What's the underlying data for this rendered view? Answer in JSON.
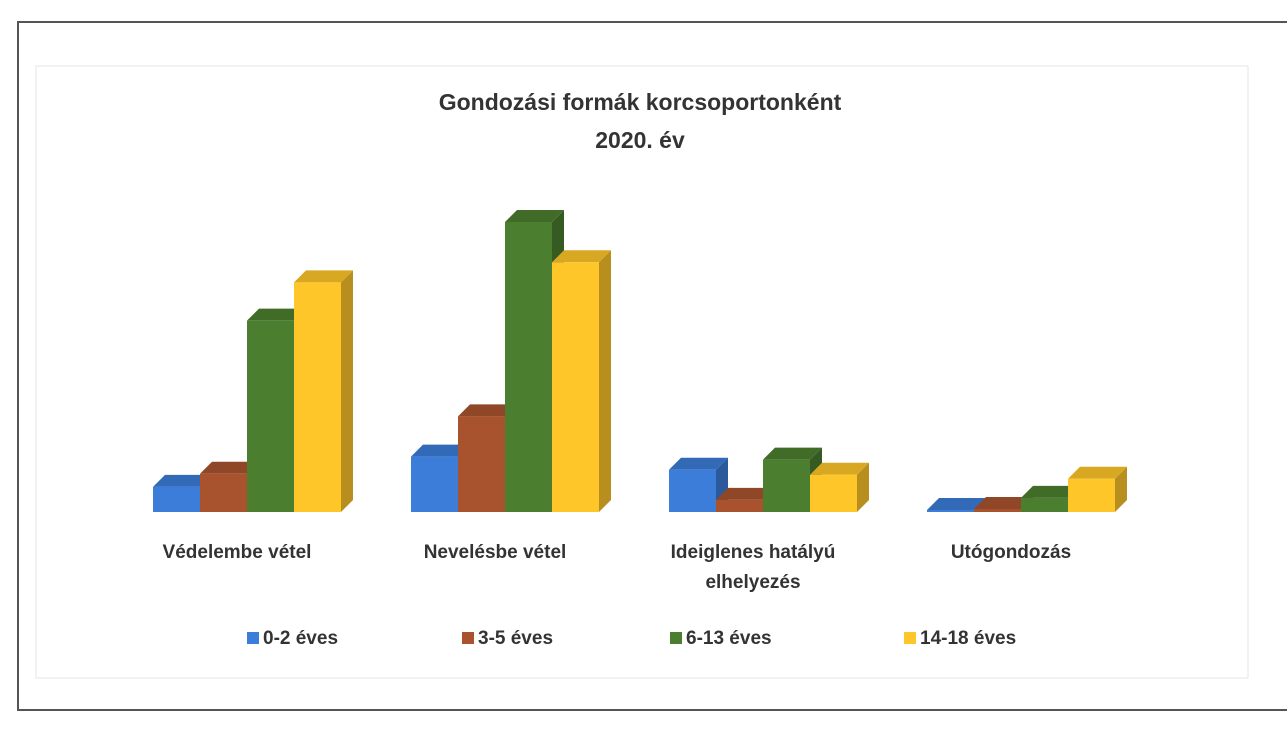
{
  "chart_data": {
    "type": "bar3d",
    "title": "Gondozási formák korcsoportonként",
    "subtitle": "2020. év",
    "categories": [
      "Védelembe vétel",
      "Nevelésbe vétel",
      "Ideiglenes hatályú elhelyezés",
      "Utógondozás"
    ],
    "series": [
      {
        "name": "0-2 éves",
        "color": "#3b7dd8",
        "values": [
          25,
          55,
          42,
          2
        ]
      },
      {
        "name": "3-5 éves",
        "color": "#a8532e",
        "values": [
          38,
          95,
          12,
          3
        ]
      },
      {
        "name": "6-13 éves",
        "color": "#4b7f2f",
        "values": [
          190,
          288,
          52,
          14
        ]
      },
      {
        "name": "14-18 éves",
        "color": "#ffc629",
        "values": [
          228,
          248,
          37,
          33
        ]
      }
    ],
    "legend": "bottom"
  }
}
